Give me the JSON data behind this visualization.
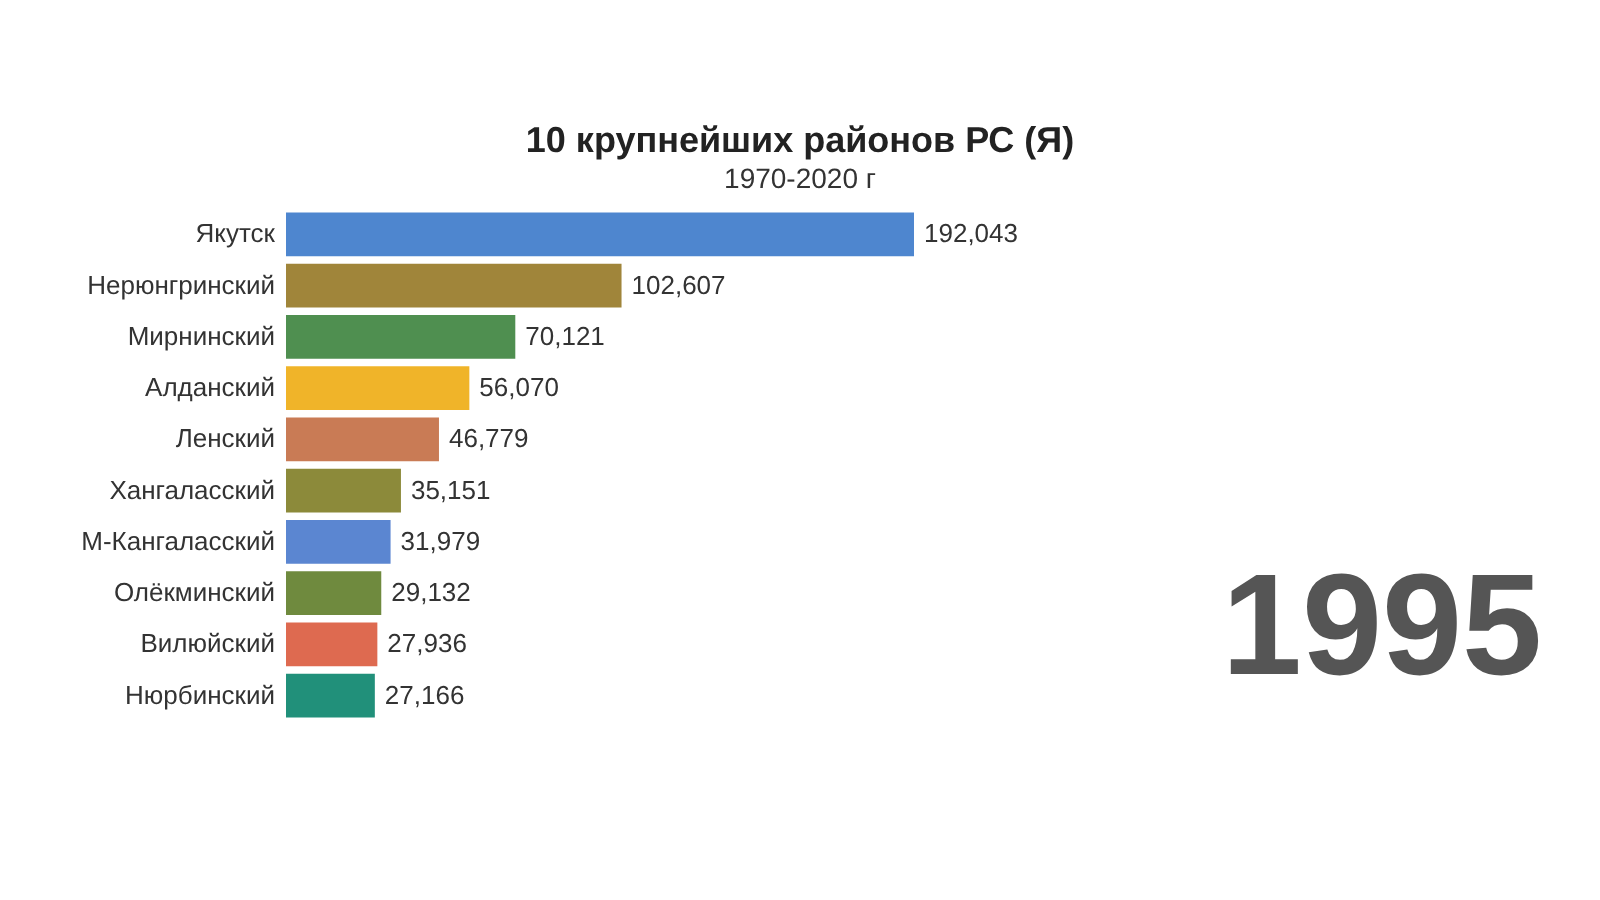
{
  "chart_data": {
    "type": "bar",
    "orientation": "horizontal",
    "title": "10 крупнейших районов РС (Я)",
    "subtitle": "1970-2020 г",
    "categories": [
      "Якутск",
      "Нерюнгринский",
      "Мирнинский",
      "Алданский",
      "Ленский",
      "Хангаласский",
      "М-Кангаласский",
      "Олёкминский",
      "Вилюйский",
      "Нюрбинский"
    ],
    "values": [
      192043,
      102607,
      70121,
      56070,
      46779,
      35151,
      31979,
      29132,
      27936,
      27166
    ],
    "colors": [
      "#4e86cf",
      "#a0853a",
      "#4f8f50",
      "#f0b429",
      "#c97b55",
      "#8c8a3a",
      "#5b86d1",
      "#6f8a3e",
      "#de6a50",
      "#21907a"
    ],
    "value_labels": [
      "192,043",
      "102,607",
      "70,121",
      "56,070",
      "46,779",
      "35,151",
      "31,979",
      "29,132",
      "27,936",
      "27,166"
    ],
    "grid": false,
    "annotations": [
      "1995"
    ]
  }
}
